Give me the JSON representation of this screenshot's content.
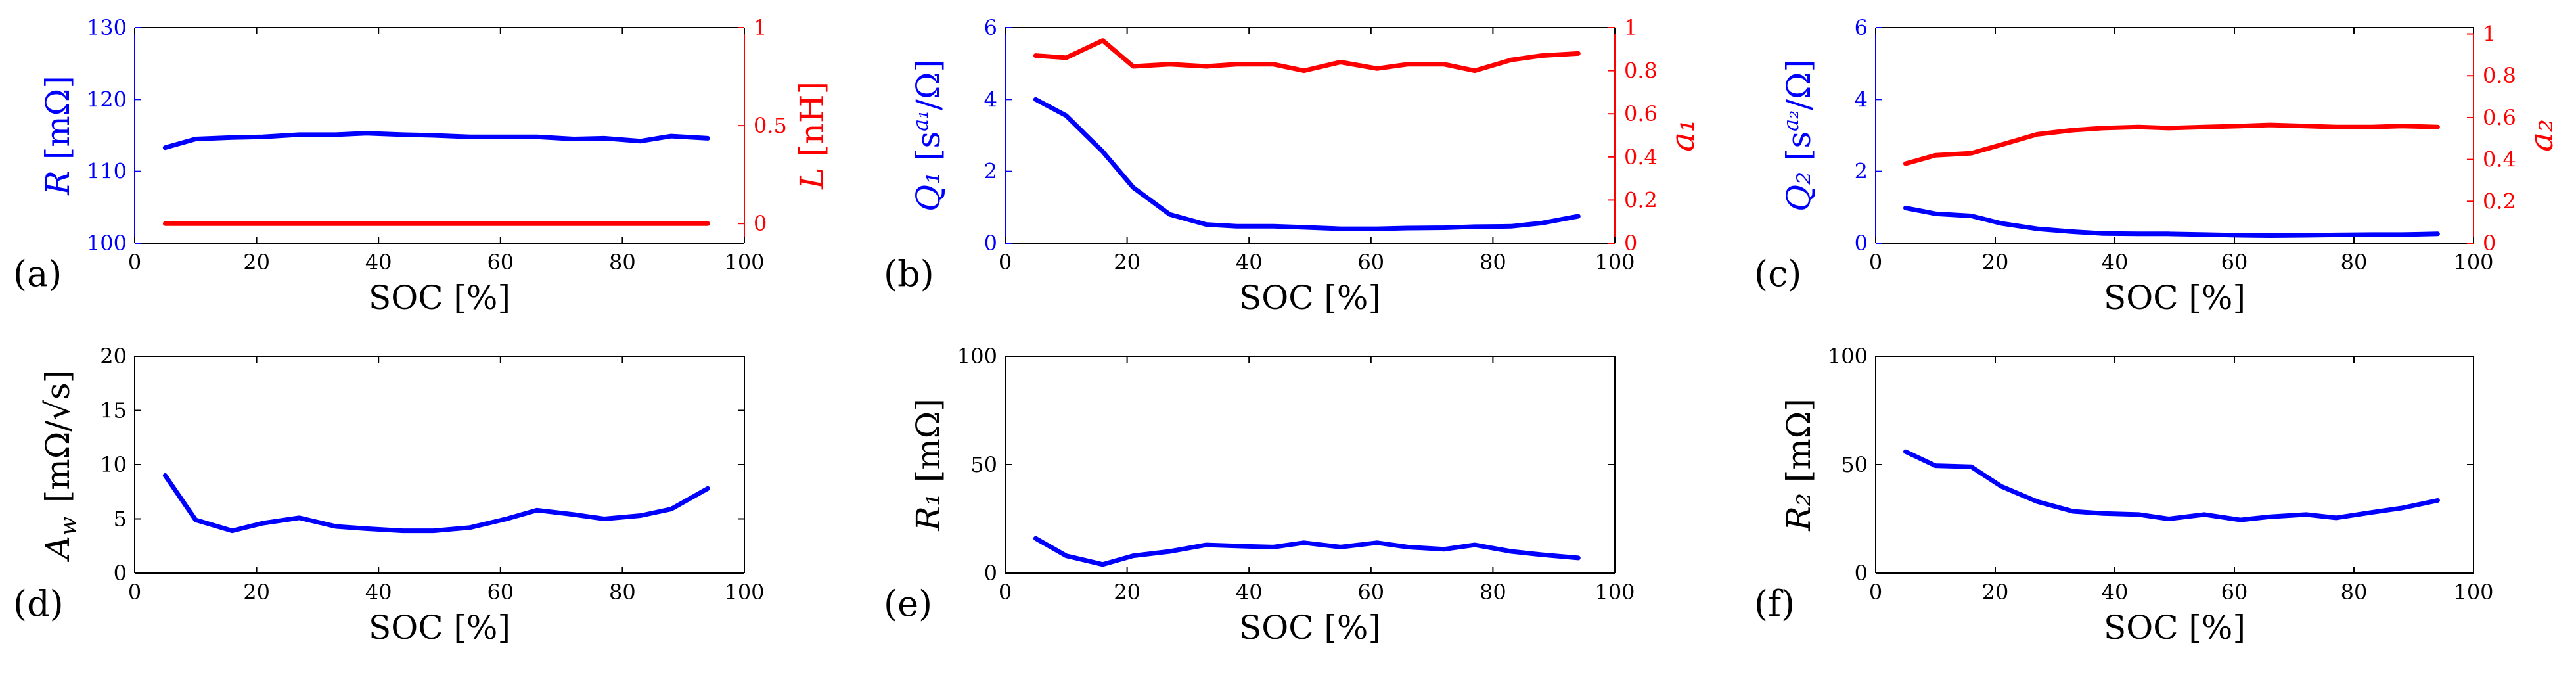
{
  "colors": {
    "blue": "#0000ff",
    "red": "#ff0000",
    "black": "#000000"
  },
  "chart_data": [
    {
      "type": "line",
      "panel_label": "(a)",
      "xlabel": "SOC [%]",
      "xlim": [
        0,
        100
      ],
      "x_ticks": [
        "0",
        "20",
        "40",
        "60",
        "80",
        "100"
      ],
      "left_axis": {
        "label": "R",
        "unit": "[mΩ]",
        "ylim": [
          100,
          130
        ],
        "ticks": [
          100,
          110,
          120,
          130
        ],
        "tick_labels": [
          "100",
          "110",
          "120",
          "130"
        ],
        "color": "#0000ff"
      },
      "right_axis": {
        "label": "L",
        "unit": "[nH]",
        "ylim": [
          -0.1,
          1
        ],
        "ticks": [
          0,
          0.5,
          1
        ],
        "tick_labels": [
          "0",
          "0.5",
          "1"
        ],
        "color": "#ff0000"
      },
      "series": [
        {
          "name": "R",
          "axis": "left",
          "color": "#0000ff",
          "x": [
            5,
            10,
            16,
            21,
            27,
            33,
            38,
            44,
            49,
            55,
            61,
            66,
            72,
            77,
            83,
            88,
            94
          ],
          "y": [
            113.3,
            114.5,
            114.7,
            114.8,
            115.1,
            115.1,
            115.3,
            115.1,
            115.0,
            114.8,
            114.8,
            114.8,
            114.5,
            114.6,
            114.2,
            114.9,
            114.6
          ]
        },
        {
          "name": "L",
          "axis": "right",
          "color": "#ff0000",
          "x": [
            5,
            10,
            16,
            21,
            27,
            33,
            38,
            44,
            49,
            55,
            61,
            66,
            72,
            77,
            83,
            88,
            94
          ],
          "y": [
            0,
            0,
            0,
            0,
            0,
            0,
            0,
            0,
            0,
            0,
            0,
            0,
            0,
            0,
            0,
            0,
            0
          ]
        }
      ]
    },
    {
      "type": "line",
      "panel_label": "(b)",
      "xlabel": "SOC [%]",
      "xlim": [
        0,
        100
      ],
      "x_ticks": [
        "0",
        "20",
        "40",
        "60",
        "80",
        "100"
      ],
      "left_axis": {
        "label": "Q₁",
        "unit": "[s^(a₁)/Ω]",
        "ylim": [
          0,
          6
        ],
        "ticks": [
          0,
          2,
          4,
          6
        ],
        "tick_labels": [
          "0",
          "2",
          "4",
          "6"
        ],
        "color": "#0000ff"
      },
      "right_axis": {
        "label": "a₁",
        "unit": "",
        "ylim": [
          0,
          1
        ],
        "ticks": [
          0,
          0.2,
          0.4,
          0.6,
          0.8,
          1
        ],
        "tick_labels": [
          "0",
          "0.2",
          "0.4",
          "0.6",
          "0.8",
          "1"
        ],
        "color": "#ff0000"
      },
      "series": [
        {
          "name": "Q1",
          "axis": "left",
          "color": "#0000ff",
          "x": [
            5,
            10,
            16,
            21,
            27,
            33,
            38,
            44,
            49,
            55,
            61,
            66,
            72,
            77,
            83,
            88,
            94
          ],
          "y": [
            4.0,
            3.55,
            2.55,
            1.55,
            0.8,
            0.52,
            0.47,
            0.47,
            0.44,
            0.4,
            0.4,
            0.42,
            0.43,
            0.46,
            0.47,
            0.56,
            0.75
          ]
        },
        {
          "name": "a1",
          "axis": "right",
          "color": "#ff0000",
          "x": [
            5,
            10,
            16,
            21,
            27,
            33,
            38,
            44,
            49,
            55,
            61,
            66,
            72,
            77,
            83,
            88,
            94
          ],
          "y": [
            0.87,
            0.86,
            0.94,
            0.82,
            0.83,
            0.82,
            0.83,
            0.83,
            0.8,
            0.84,
            0.81,
            0.83,
            0.83,
            0.8,
            0.85,
            0.87,
            0.88
          ]
        }
      ]
    },
    {
      "type": "line",
      "panel_label": "(c)",
      "xlabel": "SOC [%]",
      "xlim": [
        0,
        100
      ],
      "x_ticks": [
        "0",
        "20",
        "40",
        "60",
        "80",
        "100"
      ],
      "left_axis": {
        "label": "Q₂",
        "unit": "[s^(a₂)/Ω]",
        "ylim": [
          0,
          6
        ],
        "ticks": [
          0,
          2,
          4,
          6
        ],
        "tick_labels": [
          "0",
          "2",
          "4",
          "6"
        ],
        "color": "#0000ff"
      },
      "right_axis": {
        "label": "a₂",
        "unit": "",
        "ylim": [
          0,
          1.03
        ],
        "ticks": [
          0,
          0.2,
          0.4,
          0.6,
          0.8,
          1
        ],
        "tick_labels": [
          "0",
          "0.2",
          "0.4",
          "0.6",
          "0.8",
          "1"
        ],
        "color": "#ff0000"
      },
      "series": [
        {
          "name": "Q2",
          "axis": "left",
          "color": "#0000ff",
          "x": [
            5,
            10,
            16,
            21,
            27,
            33,
            38,
            44,
            49,
            55,
            61,
            66,
            72,
            77,
            83,
            88,
            94
          ],
          "y": [
            0.98,
            0.82,
            0.76,
            0.55,
            0.4,
            0.32,
            0.27,
            0.26,
            0.26,
            0.24,
            0.22,
            0.21,
            0.22,
            0.23,
            0.24,
            0.24,
            0.26
          ]
        },
        {
          "name": "a2",
          "axis": "right",
          "color": "#ff0000",
          "x": [
            5,
            10,
            16,
            21,
            27,
            33,
            38,
            44,
            49,
            55,
            61,
            66,
            72,
            77,
            83,
            88,
            94
          ],
          "y": [
            0.38,
            0.42,
            0.43,
            0.47,
            0.52,
            0.54,
            0.55,
            0.555,
            0.55,
            0.555,
            0.56,
            0.565,
            0.56,
            0.555,
            0.555,
            0.56,
            0.555
          ]
        }
      ]
    },
    {
      "type": "line",
      "panel_label": "(d)",
      "xlabel": "SOC [%]",
      "xlim": [
        0,
        100
      ],
      "x_ticks": [
        "0",
        "20",
        "40",
        "60",
        "80",
        "100"
      ],
      "left_axis": {
        "label": "A_w",
        "unit": "[mΩ/√s]",
        "ylim": [
          0,
          20
        ],
        "ticks": [
          0,
          5,
          10,
          15,
          20
        ],
        "tick_labels": [
          "0",
          "5",
          "10",
          "15",
          "20"
        ],
        "color": "#000000"
      },
      "series": [
        {
          "name": "Aw",
          "axis": "left",
          "color": "#0000ff",
          "x": [
            5,
            10,
            16,
            21,
            27,
            33,
            38,
            44,
            49,
            55,
            61,
            66,
            72,
            77,
            83,
            88,
            94
          ],
          "y": [
            9.0,
            4.9,
            3.9,
            4.6,
            5.1,
            4.3,
            4.1,
            3.9,
            3.9,
            4.2,
            5.0,
            5.8,
            5.4,
            5.0,
            5.3,
            5.9,
            7.8
          ]
        }
      ]
    },
    {
      "type": "line",
      "panel_label": "(e)",
      "xlabel": "SOC [%]",
      "xlim": [
        0,
        100
      ],
      "x_ticks": [
        "0",
        "20",
        "40",
        "60",
        "80",
        "100"
      ],
      "left_axis": {
        "label": "R₁",
        "unit": "[mΩ]",
        "ylim": [
          0,
          100
        ],
        "ticks": [
          0,
          50,
          100
        ],
        "tick_labels": [
          "0",
          "50",
          "100"
        ],
        "color": "#000000"
      },
      "series": [
        {
          "name": "R1",
          "axis": "left",
          "color": "#0000ff",
          "x": [
            5,
            10,
            16,
            21,
            27,
            33,
            38,
            44,
            49,
            55,
            61,
            66,
            72,
            77,
            83,
            88,
            94
          ],
          "y": [
            16,
            8,
            4,
            8,
            10,
            13,
            12.5,
            12,
            14,
            12,
            14,
            12,
            11,
            13,
            10,
            8.5,
            7
          ]
        }
      ]
    },
    {
      "type": "line",
      "panel_label": "(f)",
      "xlabel": "SOC [%]",
      "xlim": [
        0,
        100
      ],
      "x_ticks": [
        "0",
        "20",
        "40",
        "60",
        "80",
        "100"
      ],
      "left_axis": {
        "label": "R₂",
        "unit": "[mΩ]",
        "ylim": [
          0,
          100
        ],
        "ticks": [
          0,
          50,
          100
        ],
        "tick_labels": [
          "0",
          "50",
          "100"
        ],
        "color": "#000000"
      },
      "series": [
        {
          "name": "R2",
          "axis": "left",
          "color": "#0000ff",
          "x": [
            5,
            10,
            16,
            21,
            27,
            33,
            38,
            44,
            49,
            55,
            61,
            66,
            72,
            77,
            83,
            88,
            94
          ],
          "y": [
            56,
            49.5,
            49,
            40,
            33,
            28.5,
            27.5,
            27,
            25,
            27,
            24.5,
            26,
            27,
            25.5,
            28,
            30,
            33.5
          ]
        }
      ]
    }
  ]
}
